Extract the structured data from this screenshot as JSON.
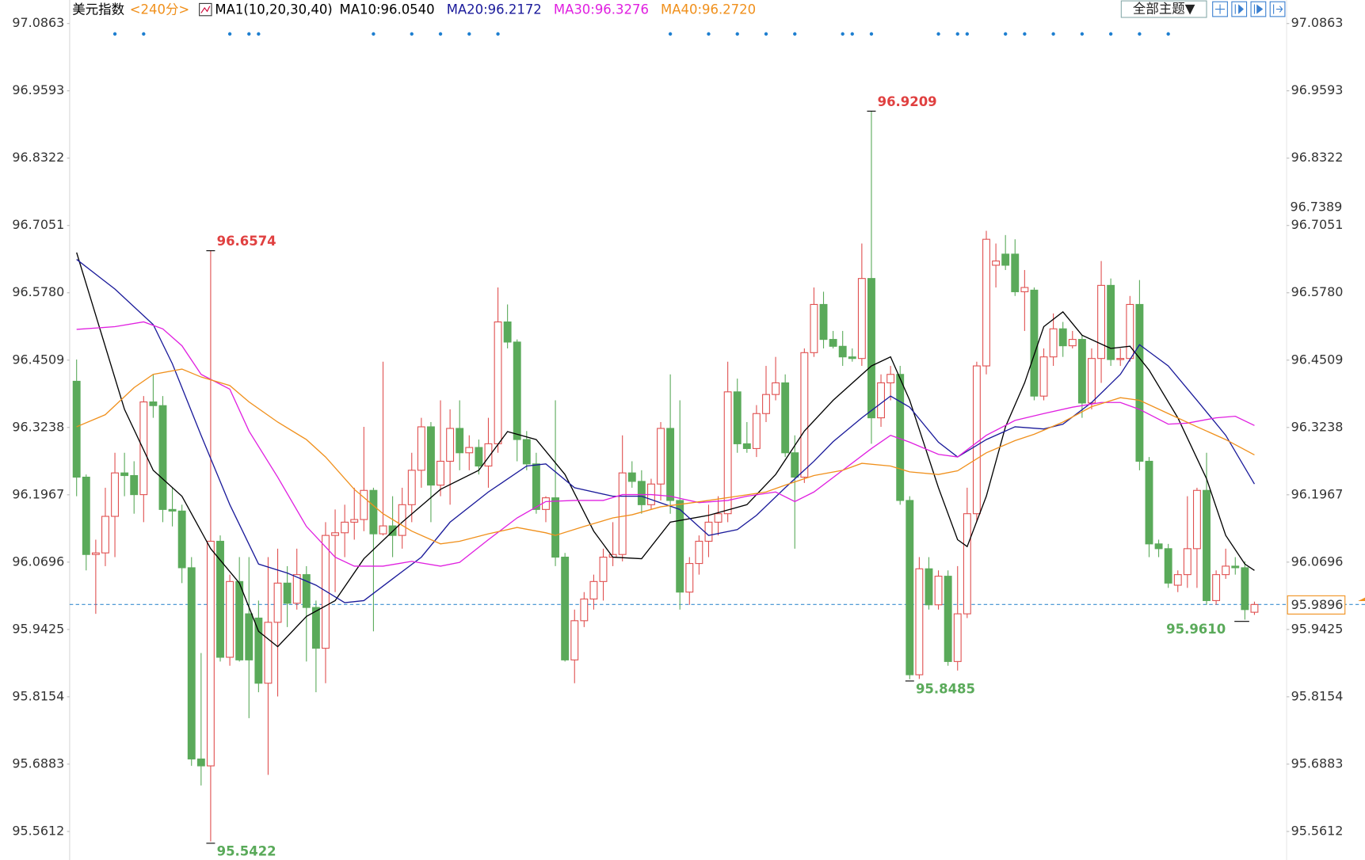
{
  "chart_data": {
    "type": "candlestick",
    "title": "美元指数",
    "period": "<240分>",
    "indicator": "MA1(10,20,30,40)",
    "candles": {
      "up_color": "#e05050",
      "down_color": "#5aaa5a",
      "open": [
        96.411,
        96.23,
        96.084,
        96.087,
        96.156,
        96.238,
        96.233,
        96.197,
        96.372,
        96.365,
        96.169,
        96.166,
        96.059,
        95.698,
        95.685,
        96.109,
        95.89,
        96.033,
        95.972,
        95.964,
        95.841,
        95.956,
        96.03,
        95.992,
        96.046,
        95.984,
        95.907,
        96.12,
        96.125,
        96.145,
        96.15,
        96.205,
        96.123,
        96.138,
        96.12,
        96.178,
        96.243,
        96.325,
        96.215,
        96.26,
        96.322,
        96.276,
        96.286,
        96.251,
        96.293,
        96.523,
        96.485,
        96.301,
        96.255,
        96.169,
        96.191,
        96.079,
        95.885,
        95.959,
        96.0,
        96.033,
        96.079,
        96.084,
        96.238,
        96.222,
        96.178,
        96.217,
        96.322,
        96.186,
        96.013,
        96.067,
        96.109,
        96.145,
        96.161,
        96.391,
        96.293,
        96.284,
        96.35,
        96.386,
        96.408,
        96.276,
        96.23,
        96.465,
        96.556,
        96.49,
        96.477,
        96.457,
        96.454,
        96.605,
        96.342,
        96.408,
        96.424,
        96.186,
        95.857,
        96.057,
        95.989,
        96.043,
        95.882,
        95.972,
        96.161,
        96.44,
        96.63,
        96.651,
        96.651,
        96.58,
        96.583,
        96.383,
        96.457,
        96.51,
        96.478,
        96.49,
        96.37,
        96.454,
        96.592,
        96.452,
        96.454,
        96.556,
        96.26,
        96.104,
        96.095,
        96.026,
        96.046,
        96.095,
        96.205,
        95.997,
        96.046,
        96.062,
        96.059,
        95.975
      ],
      "high": [
        96.452,
        96.235,
        96.112,
        96.21,
        96.276,
        96.276,
        96.26,
        96.383,
        96.424,
        96.383,
        96.21,
        96.178,
        96.079,
        95.898,
        96.6574,
        96.12,
        96.046,
        96.079,
        96.079,
        95.997,
        96.079,
        96.095,
        96.062,
        96.095,
        96.062,
        95.997,
        96.145,
        96.169,
        96.178,
        96.21,
        96.325,
        96.21,
        96.448,
        96.194,
        96.21,
        96.276,
        96.342,
        96.334,
        96.375,
        96.358,
        96.375,
        96.309,
        96.301,
        96.342,
        96.588,
        96.556,
        96.49,
        96.317,
        96.276,
        96.194,
        96.375,
        96.087,
        95.98,
        96.013,
        96.046,
        96.095,
        96.145,
        96.309,
        96.26,
        96.243,
        96.227,
        96.334,
        96.424,
        96.375,
        96.079,
        96.12,
        96.178,
        96.194,
        96.448,
        96.416,
        96.334,
        96.366,
        96.44,
        96.457,
        96.424,
        96.309,
        96.473,
        96.588,
        96.58,
        96.506,
        96.506,
        96.473,
        96.671,
        96.9209,
        96.424,
        96.44,
        96.44,
        96.194,
        96.079,
        96.079,
        96.054,
        96.054,
        96.062,
        96.21,
        96.448,
        96.695,
        96.671,
        96.687,
        96.679,
        96.621,
        96.588,
        96.473,
        96.539,
        96.523,
        96.506,
        96.498,
        96.473,
        96.638,
        96.605,
        96.473,
        96.572,
        96.602,
        96.268,
        96.112,
        96.104,
        96.054,
        96.194,
        96.21,
        96.276,
        96.054,
        96.095,
        96.079,
        96.071,
        95.995
      ],
      "low": [
        96.194,
        96.054,
        95.972,
        96.062,
        96.079,
        96.194,
        96.161,
        96.145,
        96.342,
        96.145,
        96.137,
        96.03,
        95.685,
        95.648,
        95.5422,
        95.882,
        95.874,
        95.882,
        95.775,
        95.824,
        95.668,
        95.816,
        95.947,
        95.98,
        95.882,
        95.824,
        95.841,
        96.013,
        96.079,
        96.112,
        96.128,
        95.939,
        96.12,
        96.079,
        96.095,
        96.145,
        96.21,
        96.145,
        96.194,
        96.178,
        96.243,
        96.243,
        96.235,
        96.21,
        96.276,
        96.473,
        96.26,
        96.243,
        96.161,
        96.145,
        96.062,
        95.882,
        95.841,
        95.947,
        95.98,
        95.997,
        96.062,
        96.071,
        96.21,
        96.161,
        96.169,
        96.186,
        96.161,
        95.98,
        95.989,
        96.046,
        96.079,
        96.12,
        96.145,
        96.276,
        96.276,
        96.268,
        96.334,
        96.375,
        96.268,
        96.095,
        96.219,
        96.457,
        96.473,
        96.473,
        96.44,
        96.448,
        96.44,
        96.293,
        96.325,
        96.375,
        96.178,
        95.8485,
        95.849,
        95.98,
        95.98,
        95.874,
        95.865,
        95.964,
        96.145,
        96.424,
        96.588,
        96.621,
        96.572,
        96.506,
        96.375,
        96.375,
        96.44,
        96.457,
        96.473,
        96.342,
        96.358,
        96.408,
        96.44,
        96.44,
        96.448,
        96.243,
        96.079,
        96.079,
        96.021,
        96.013,
        96.021,
        96.021,
        95.989,
        95.989,
        96.038,
        96.046,
        95.961,
        95.97
      ],
      "close": [
        96.23,
        96.084,
        96.087,
        96.156,
        96.238,
        96.233,
        96.197,
        96.372,
        96.365,
        96.169,
        96.166,
        96.059,
        95.698,
        95.685,
        96.109,
        95.89,
        96.033,
        95.885,
        95.885,
        95.841,
        95.956,
        96.03,
        95.992,
        96.046,
        95.984,
        95.907,
        96.12,
        96.125,
        96.145,
        96.15,
        96.205,
        96.123,
        96.138,
        96.12,
        96.178,
        96.243,
        96.325,
        96.215,
        96.26,
        96.322,
        96.276,
        96.286,
        96.251,
        96.293,
        96.523,
        96.485,
        96.301,
        96.255,
        96.169,
        96.191,
        96.079,
        95.885,
        95.959,
        96.0,
        96.033,
        96.079,
        96.084,
        96.238,
        96.222,
        96.178,
        96.217,
        96.322,
        96.186,
        96.013,
        96.067,
        96.109,
        96.145,
        96.161,
        96.391,
        96.293,
        96.284,
        96.35,
        96.386,
        96.408,
        96.276,
        96.23,
        96.465,
        96.556,
        96.49,
        96.477,
        96.457,
        96.454,
        96.605,
        96.342,
        96.408,
        96.424,
        96.186,
        95.857,
        96.057,
        95.989,
        96.043,
        95.882,
        95.972,
        96.161,
        96.44,
        96.679,
        96.638,
        96.63,
        96.58,
        96.588,
        96.383,
        96.457,
        96.51,
        96.478,
        96.49,
        96.37,
        96.454,
        96.592,
        96.452,
        96.454,
        96.556,
        96.26,
        96.104,
        96.095,
        96.03,
        96.046,
        96.095,
        96.205,
        95.997,
        96.046,
        96.062,
        96.059,
        95.98,
        95.9896
      ]
    },
    "series": [
      {
        "name": "MA10:96.0540",
        "color": "#000000",
        "x": [
          0,
          5,
          8,
          11,
          14,
          17,
          19,
          21,
          24,
          27,
          30,
          34,
          38,
          42,
          45,
          48,
          51,
          54,
          56,
          59,
          62,
          66,
          70,
          73,
          76,
          79,
          83,
          85,
          87,
          90,
          92,
          93,
          95,
          97,
          99,
          101,
          103,
          105,
          108,
          110,
          112,
          115,
          118,
          120,
          122,
          123
        ],
        "values": [
          96.654,
          96.358,
          96.243,
          96.194,
          96.095,
          96.03,
          95.939,
          95.91,
          95.967,
          95.997,
          96.076,
          96.145,
          96.207,
          96.243,
          96.316,
          96.301,
          96.235,
          96.128,
          96.079,
          96.076,
          96.145,
          96.158,
          96.178,
          96.235,
          96.317,
          96.375,
          96.44,
          96.457,
          96.375,
          96.21,
          96.112,
          96.099,
          96.194,
          96.325,
          96.408,
          96.514,
          96.542,
          96.498,
          96.473,
          96.477,
          96.432,
          96.342,
          96.227,
          96.12,
          96.066,
          96.054
        ]
      },
      {
        "name": "MA20:96.2172",
        "color": "#1a1a9a",
        "x": [
          0,
          4,
          8,
          10,
          13,
          16,
          19,
          22,
          25,
          28,
          30,
          33,
          36,
          39,
          43,
          47,
          49,
          52,
          56,
          59,
          63,
          66,
          69,
          71,
          74,
          77,
          79,
          82,
          85,
          87,
          90,
          92,
          95,
          98,
          101,
          103,
          106,
          109,
          111,
          114,
          117,
          120,
          123
        ],
        "values": [
          96.641,
          96.585,
          96.518,
          96.444,
          96.309,
          96.178,
          96.066,
          96.049,
          96.026,
          95.993,
          95.997,
          96.038,
          96.079,
          96.145,
          96.202,
          96.251,
          96.255,
          96.21,
          96.194,
          96.194,
          96.169,
          96.12,
          96.131,
          96.158,
          96.21,
          96.26,
          96.297,
          96.342,
          96.383,
          96.362,
          96.296,
          96.268,
          96.301,
          96.325,
          96.321,
          96.33,
          96.371,
          96.424,
          96.48,
          96.44,
          96.375,
          96.309,
          96.2172
        ]
      },
      {
        "name": "MA30:96.3276",
        "color": "#e020e0",
        "x": [
          0,
          4,
          7,
          9,
          11,
          13,
          16,
          18,
          21,
          24,
          27,
          29,
          32,
          35,
          38,
          40,
          43,
          46,
          49,
          52,
          55,
          57,
          60,
          62,
          65,
          68,
          70,
          73,
          75,
          77,
          80,
          83,
          85,
          87,
          90,
          92,
          95,
          98,
          101,
          104,
          107,
          109,
          111,
          114,
          116,
          119,
          121,
          123
        ],
        "values": [
          96.509,
          96.514,
          96.523,
          96.51,
          96.478,
          96.424,
          96.396,
          96.317,
          96.23,
          96.137,
          96.079,
          96.062,
          96.062,
          96.071,
          96.062,
          96.069,
          96.112,
          96.153,
          96.184,
          96.186,
          96.186,
          96.197,
          96.197,
          96.194,
          96.182,
          96.186,
          96.194,
          96.202,
          96.184,
          96.202,
          96.243,
          96.284,
          96.309,
          96.296,
          96.273,
          96.268,
          96.309,
          96.337,
          96.35,
          96.362,
          96.371,
          96.371,
          96.358,
          96.33,
          96.332,
          96.342,
          96.345,
          96.3276
        ]
      },
      {
        "name": "MA40:96.2720",
        "color": "#f0901c",
        "x": [
          0,
          3,
          6,
          8,
          11,
          13,
          16,
          18,
          21,
          24,
          26,
          29,
          32,
          35,
          38,
          40,
          43,
          46,
          49,
          50,
          53,
          56,
          58,
          61,
          64,
          66,
          69,
          72,
          74,
          77,
          80,
          82,
          85,
          87,
          90,
          92,
          95,
          98,
          100,
          103,
          106,
          109,
          111,
          114,
          117,
          120,
          123
        ],
        "values": [
          96.325,
          96.348,
          96.399,
          96.424,
          96.434,
          96.419,
          96.403,
          96.372,
          96.334,
          96.301,
          96.268,
          96.207,
          96.161,
          96.128,
          96.104,
          96.109,
          96.123,
          96.135,
          96.125,
          96.12,
          96.137,
          96.153,
          96.159,
          96.174,
          96.181,
          96.186,
          96.194,
          96.202,
          96.215,
          96.233,
          96.243,
          96.256,
          96.251,
          96.24,
          96.235,
          96.242,
          96.276,
          96.299,
          96.311,
          96.334,
          96.363,
          96.38,
          96.375,
          96.35,
          96.325,
          96.301,
          96.272
        ]
      }
    ],
    "ylim": [
      95.5073,
      97.1307
    ],
    "yticks": [
      97.0863,
      96.9593,
      96.8322,
      96.7051,
      {
        "value": 96.578,
        "label": "96.5780"
      },
      96.4509,
      96.3238,
      96.1967,
      96.0696,
      95.9425,
      95.8154,
      95.6883,
      95.5612
    ],
    "grid": false,
    "high_labels": [
      {
        "x": 14,
        "label": "96.6574"
      },
      {
        "x": 83,
        "label": "96.9209"
      }
    ],
    "low_labels": [
      {
        "x": 14,
        "label": "95.5422"
      },
      {
        "x": 87,
        "label": "95.8485"
      },
      {
        "x": 122,
        "label": "95.9610"
      }
    ],
    "last_price_line": true,
    "marker_value": 96.7389,
    "signals": [
      4,
      7,
      16,
      18,
      19,
      31,
      35,
      38,
      41,
      44,
      62,
      66,
      69,
      72,
      75,
      80,
      81,
      83,
      90,
      92,
      93,
      97,
      99,
      102,
      105,
      108,
      111,
      114
    ]
  },
  "toolbar": {
    "theme_button": "全部主题▼"
  }
}
